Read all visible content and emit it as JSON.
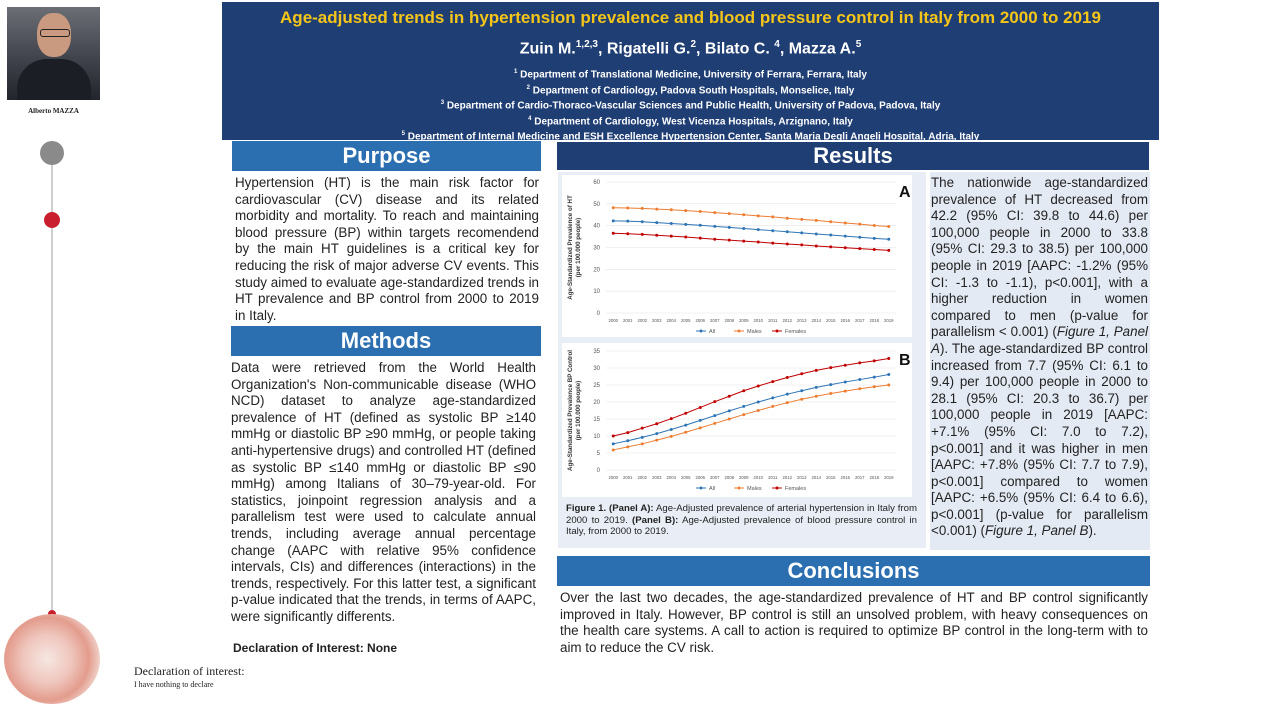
{
  "speaker": {
    "name": "Alberto MAZZA"
  },
  "declaration_left": {
    "title": "Declaration of interest:",
    "text": "I have nothing to declare"
  },
  "header": {
    "title": "Age-adjusted trends in hypertension prevalence and blood pressure control in Italy from 2000 to 2019",
    "authors": [
      {
        "name": "Zuin M.",
        "sup": "1,2,3"
      },
      {
        "name": "Rigatelli G.",
        "sup": "2"
      },
      {
        "name": "Bilato C.",
        "sup": "4"
      },
      {
        "name": "Mazza A.",
        "sup": "5"
      }
    ],
    "affiliations": [
      {
        "sup": "1",
        "text": "Department of Translational Medicine, University of Ferrara, Ferrara, Italy"
      },
      {
        "sup": "2",
        "text": "Department of Cardiology, Padova South Hospitals, Monselice, Italy"
      },
      {
        "sup": "3",
        "text": "Department of Cardio-Thoraco-Vascular Sciences and Public Health, University of Padova, Padova, Italy"
      },
      {
        "sup": "4",
        "text": "Department of Cardiology, West Vicenza Hospitals, Arzignano, Italy"
      },
      {
        "sup": "5",
        "text": "Department of Internal Medicine and ESH Excellence Hypertension Center, Santa Maria Degli Angeli Hospital, Adria, Italy"
      }
    ]
  },
  "purpose": {
    "heading": "Purpose",
    "text": "Hypertension (HT) is the main risk factor for cardiovascular (CV) disease and its related morbidity and mortality. To reach and maintaining blood pressure (BP) within targets recomendend by the main HT guidelines is a critical key for reducing the risk of major adverse CV events. This study aimed to evaluate age-standardized trends in HT prevalence and BP control from 2000 to 2019 in Italy."
  },
  "methods": {
    "heading": "Methods",
    "text": "Data were retrieved from the World Health Organization's Non-communicable disease (WHO NCD) dataset to analyze age-standardized prevalence of HT (defined as systolic BP ≥140 mmHg or diastolic BP ≥90 mmHg, or people taking anti-hypertensive drugs) and controlled HT (defined as systolic BP ≤140 mmHg or diastolic BP ≤90 mmHg) among Italians of 30–79-year-old. For statistics, joinpoint regression analysis and a parallelism test were used to calculate annual trends, including average annual percentage change (AAPC with relative 95% confidence intervals, CIs) and differences (interactions) in the trends, respectively. For this latter test, a significant p-value indicated that the trends, in terms of AAPC, were significantly differents."
  },
  "declaration": "Declaration of Interest: None",
  "results": {
    "heading": "Results",
    "text_parts": [
      "The nationwide age-standardized prevalence of HT decreased from 42.2 (95% CI: 39.8 to 44.6) per 100,000 people in 2000 to 33.8 (95% CI: 29.3 to 38.5) per 100,000 people in 2019 [AAPC: -1.2% (95% CI: -1.3 to -1.1), p<0.001], with a higher reduction in women compared to men (p-value for parallelism < 0.001) (",
      "Figure 1, Panel A",
      "). The age-standardized BP control increased from 7.7 (95% CI: 6.1 to 9.4) per 100,000 people in 2000 to 28.1 (95% CI: 20.3 to 36.7) per 100,000 people in 2019 [AAPC: +7.1% (95% CI: 7.0 to 7.2), p<0.001] and it was higher in men [AAPC: +7.8% (95% CI: 7.7 to 7.9), p<0.001] compared to women [AAPC: +6.5% (95% CI: 6.4 to 6.6), p<0.001] (p-value for parallelism <0.001) (",
      "Figure 1, Panel B",
      ")."
    ],
    "caption": {
      "label_a": "Figure 1. (Panel A):",
      "text_a": " Age-Adjusted prevalence of arterial hypertension in Italy from 2000 to 2019. ",
      "label_b": "(Panel B):",
      "text_b": " Age-Adjusted prevalence of blood pressure control in Italy, from 2000 to 2019."
    }
  },
  "conclusions": {
    "heading": "Conclusions",
    "text": "Over the last two decades, the age-standardized prevalence of HT and BP control significantly improved in Italy. However, BP control is still an unsolved problem, with heavy consequences on the health care systems. A call to action is required to optimize BP control in the long-term with to aim to reduce the CV risk."
  },
  "colors": {
    "all": "#2e75b6",
    "males": "#ed7d31",
    "females": "#c00000",
    "header_bg": "#1f3e74",
    "title": "#f5c518"
  },
  "chart_data": [
    {
      "type": "line",
      "panel": "A",
      "title": "",
      "ylabel": "Age-Standardized Prevalence of HT (per 100.000 people)",
      "xlabel": "",
      "ylim": [
        0,
        60
      ],
      "yticks": [
        0,
        10,
        20,
        30,
        40,
        50,
        60
      ],
      "categories": [
        "2000",
        "2001",
        "2002",
        "2003",
        "2004",
        "2005",
        "2006",
        "2007",
        "2008",
        "2009",
        "2010",
        "2011",
        "2012",
        "2013",
        "2014",
        "2015",
        "2016",
        "2017",
        "2018",
        "2019"
      ],
      "series": [
        {
          "name": "All",
          "color": "#2e75b6",
          "values": [
            42.2,
            42.1,
            41.8,
            41.4,
            41.0,
            40.6,
            40.2,
            39.7,
            39.2,
            38.7,
            38.2,
            37.7,
            37.2,
            36.7,
            36.2,
            35.7,
            35.2,
            34.7,
            34.2,
            33.8
          ]
        },
        {
          "name": "Males",
          "color": "#ed7d31",
          "values": [
            48.2,
            48.1,
            47.9,
            47.6,
            47.3,
            46.9,
            46.5,
            46.0,
            45.5,
            45.0,
            44.5,
            44.0,
            43.4,
            42.9,
            42.4,
            41.8,
            41.2,
            40.7,
            40.1,
            39.6
          ]
        },
        {
          "name": "Females",
          "color": "#c00000",
          "values": [
            36.5,
            36.3,
            36.0,
            35.6,
            35.2,
            34.8,
            34.3,
            33.8,
            33.4,
            32.9,
            32.5,
            32.0,
            31.6,
            31.2,
            30.7,
            30.3,
            29.9,
            29.5,
            29.1,
            28.7
          ]
        }
      ]
    },
    {
      "type": "line",
      "panel": "B",
      "title": "",
      "ylabel": "Age-Standardized Prevalence BP Control (per 100.000 people)",
      "xlabel": "",
      "ylim": [
        0,
        35
      ],
      "yticks": [
        0,
        5,
        10,
        15,
        20,
        25,
        30,
        35
      ],
      "categories": [
        "2000",
        "2001",
        "2002",
        "2003",
        "2004",
        "2005",
        "2006",
        "2007",
        "2008",
        "2009",
        "2010",
        "2011",
        "2012",
        "2013",
        "2014",
        "2015",
        "2016",
        "2017",
        "2018",
        "2019"
      ],
      "series": [
        {
          "name": "All",
          "color": "#2e75b6",
          "values": [
            7.7,
            8.6,
            9.6,
            10.7,
            11.9,
            13.2,
            14.6,
            16.0,
            17.4,
            18.7,
            20.0,
            21.2,
            22.3,
            23.3,
            24.3,
            25.1,
            25.9,
            26.6,
            27.3,
            28.1
          ]
        },
        {
          "name": "Males",
          "color": "#ed7d31",
          "values": [
            5.9,
            6.8,
            7.7,
            8.8,
            9.9,
            11.1,
            12.4,
            13.7,
            15.0,
            16.3,
            17.5,
            18.7,
            19.8,
            20.8,
            21.7,
            22.5,
            23.2,
            23.9,
            24.5,
            25.0
          ]
        },
        {
          "name": "Females",
          "color": "#c00000",
          "values": [
            10.0,
            11.0,
            12.3,
            13.6,
            15.1,
            16.7,
            18.4,
            20.1,
            21.7,
            23.3,
            24.7,
            26.0,
            27.2,
            28.3,
            29.3,
            30.1,
            30.8,
            31.5,
            32.1,
            32.8
          ]
        }
      ]
    }
  ]
}
